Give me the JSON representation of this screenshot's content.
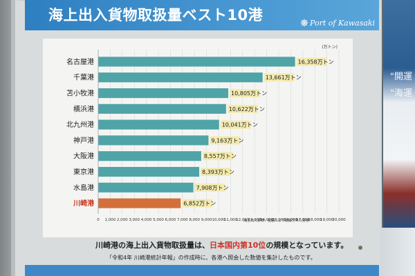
{
  "poster": {
    "title": "海上出入貨物取扱量ベスト10港",
    "brand": "Port of Kawasaki",
    "caption_pre": "川崎港の海上出入貨物取扱量は、",
    "caption_red": "日本国内第10位",
    "caption_post": "の規模となっています。",
    "source": "「令和4年 川崎港統計年報」の作成時に、各港へ照会した数値を集計したものです。",
    "foot_note": "海上出入貨物：船舶により運搬された貨物"
  },
  "right_poster": {
    "line1": "\"開運",
    "line2": "\"海運"
  },
  "chart_data": {
    "type": "bar",
    "orientation": "horizontal",
    "unit": "(万トン)",
    "value_suffix": "万トン",
    "categories": [
      "名古屋港",
      "千葉港",
      "苫小牧港",
      "横浜港",
      "北九州港",
      "神戸港",
      "大阪港",
      "東京港",
      "水島港",
      "川崎港"
    ],
    "values": [
      16358,
      13661,
      10805,
      10622,
      10041,
      9163,
      8557,
      8393,
      7908,
      6852
    ],
    "value_labels": [
      "16,358",
      "13,661",
      "10,805",
      "10,622",
      "10,041",
      "9,163",
      "8,557",
      "8,393",
      "7,908",
      "6,852"
    ],
    "highlight": "川崎港",
    "xlim": [
      0,
      20000
    ],
    "xticks": [
      "0",
      "1,000",
      "2,000",
      "3,000",
      "4,000",
      "5,000",
      "6,000",
      "7,000",
      "8,000",
      "9,000",
      "10,000",
      "11,000",
      "12,000",
      "13,000",
      "14,000",
      "15,000",
      "16,000",
      "17,000",
      "18,000",
      "19,000",
      "20,000"
    ],
    "bar_color": "#4fa4a8",
    "highlight_color": "#d2703c",
    "label_box_color": "#f3eab0",
    "grid": true
  }
}
